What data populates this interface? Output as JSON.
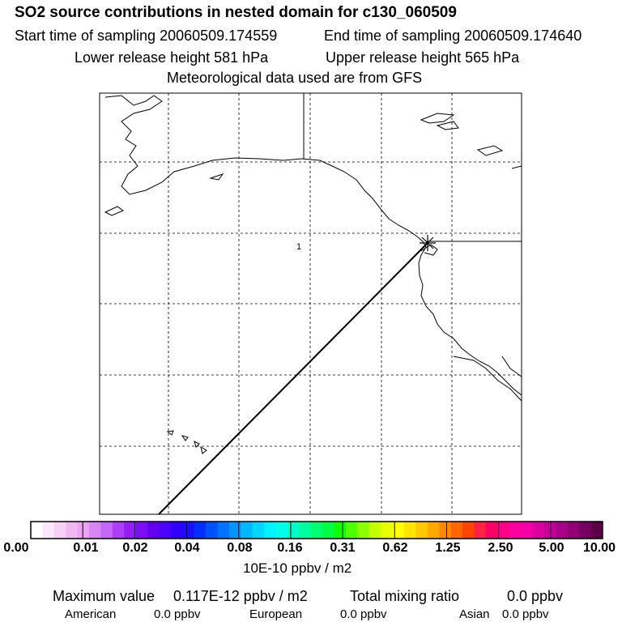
{
  "header": {
    "title": "SO2 source contributions in nested domain for c130_060509",
    "start_time": "Start time of sampling 20060509.174559",
    "end_time": "End time of sampling 20060509.174640",
    "lower_release": "Lower release height  581 hPa",
    "upper_release": "Upper release height  565 hPa",
    "met_data": "Meteorological data used are from GFS"
  },
  "map": {
    "marker_label": "1"
  },
  "colorbar": {
    "colors": [
      "#ffffff",
      "#fbe6fb",
      "#f6d0f6",
      "#f0b8f0",
      "#eba2f2",
      "#d985f5",
      "#c466f7",
      "#ad3ef8",
      "#951ef8",
      "#7d0ef4",
      "#6400f0",
      "#4c00ff",
      "#3200ff",
      "#1a10ff",
      "#0030ff",
      "#0052ff",
      "#0074ff",
      "#0096ff",
      "#00b8ff",
      "#00d8ff",
      "#00f4ff",
      "#00ffe8",
      "#00ffc8",
      "#00ff9c",
      "#00ff70",
      "#00ff44",
      "#10ff00",
      "#50ff00",
      "#8cff00",
      "#c4ff00",
      "#e8ff00",
      "#ffff00",
      "#ffe600",
      "#ffc800",
      "#ffaa00",
      "#ff8800",
      "#ff6600",
      "#ff4400",
      "#ff2244",
      "#ff0066",
      "#ff0088",
      "#ff00a0",
      "#f400a6",
      "#dc009e",
      "#c40096",
      "#aa0088",
      "#900074",
      "#760060",
      "#5c0048"
    ],
    "ticks": [
      "0.00",
      "0.01",
      "0.02",
      "0.04",
      "0.08",
      "0.16",
      "0.31",
      "0.62",
      "1.25",
      "2.50",
      "5.00",
      "10.00"
    ],
    "units": "10E-10 ppbv / m2"
  },
  "footer": {
    "max_label": "Maximum value",
    "max_value": "0.117E-12 ppbv / m2",
    "total_label": "Total mixing ratio",
    "total_value": "0.0 ppbv",
    "american_label": "American",
    "american_value": "0.0 ppbv",
    "european_label": "European",
    "european_value": "0.0 ppbv",
    "asian_label": "Asian",
    "asian_value": "0.0 ppbv"
  }
}
